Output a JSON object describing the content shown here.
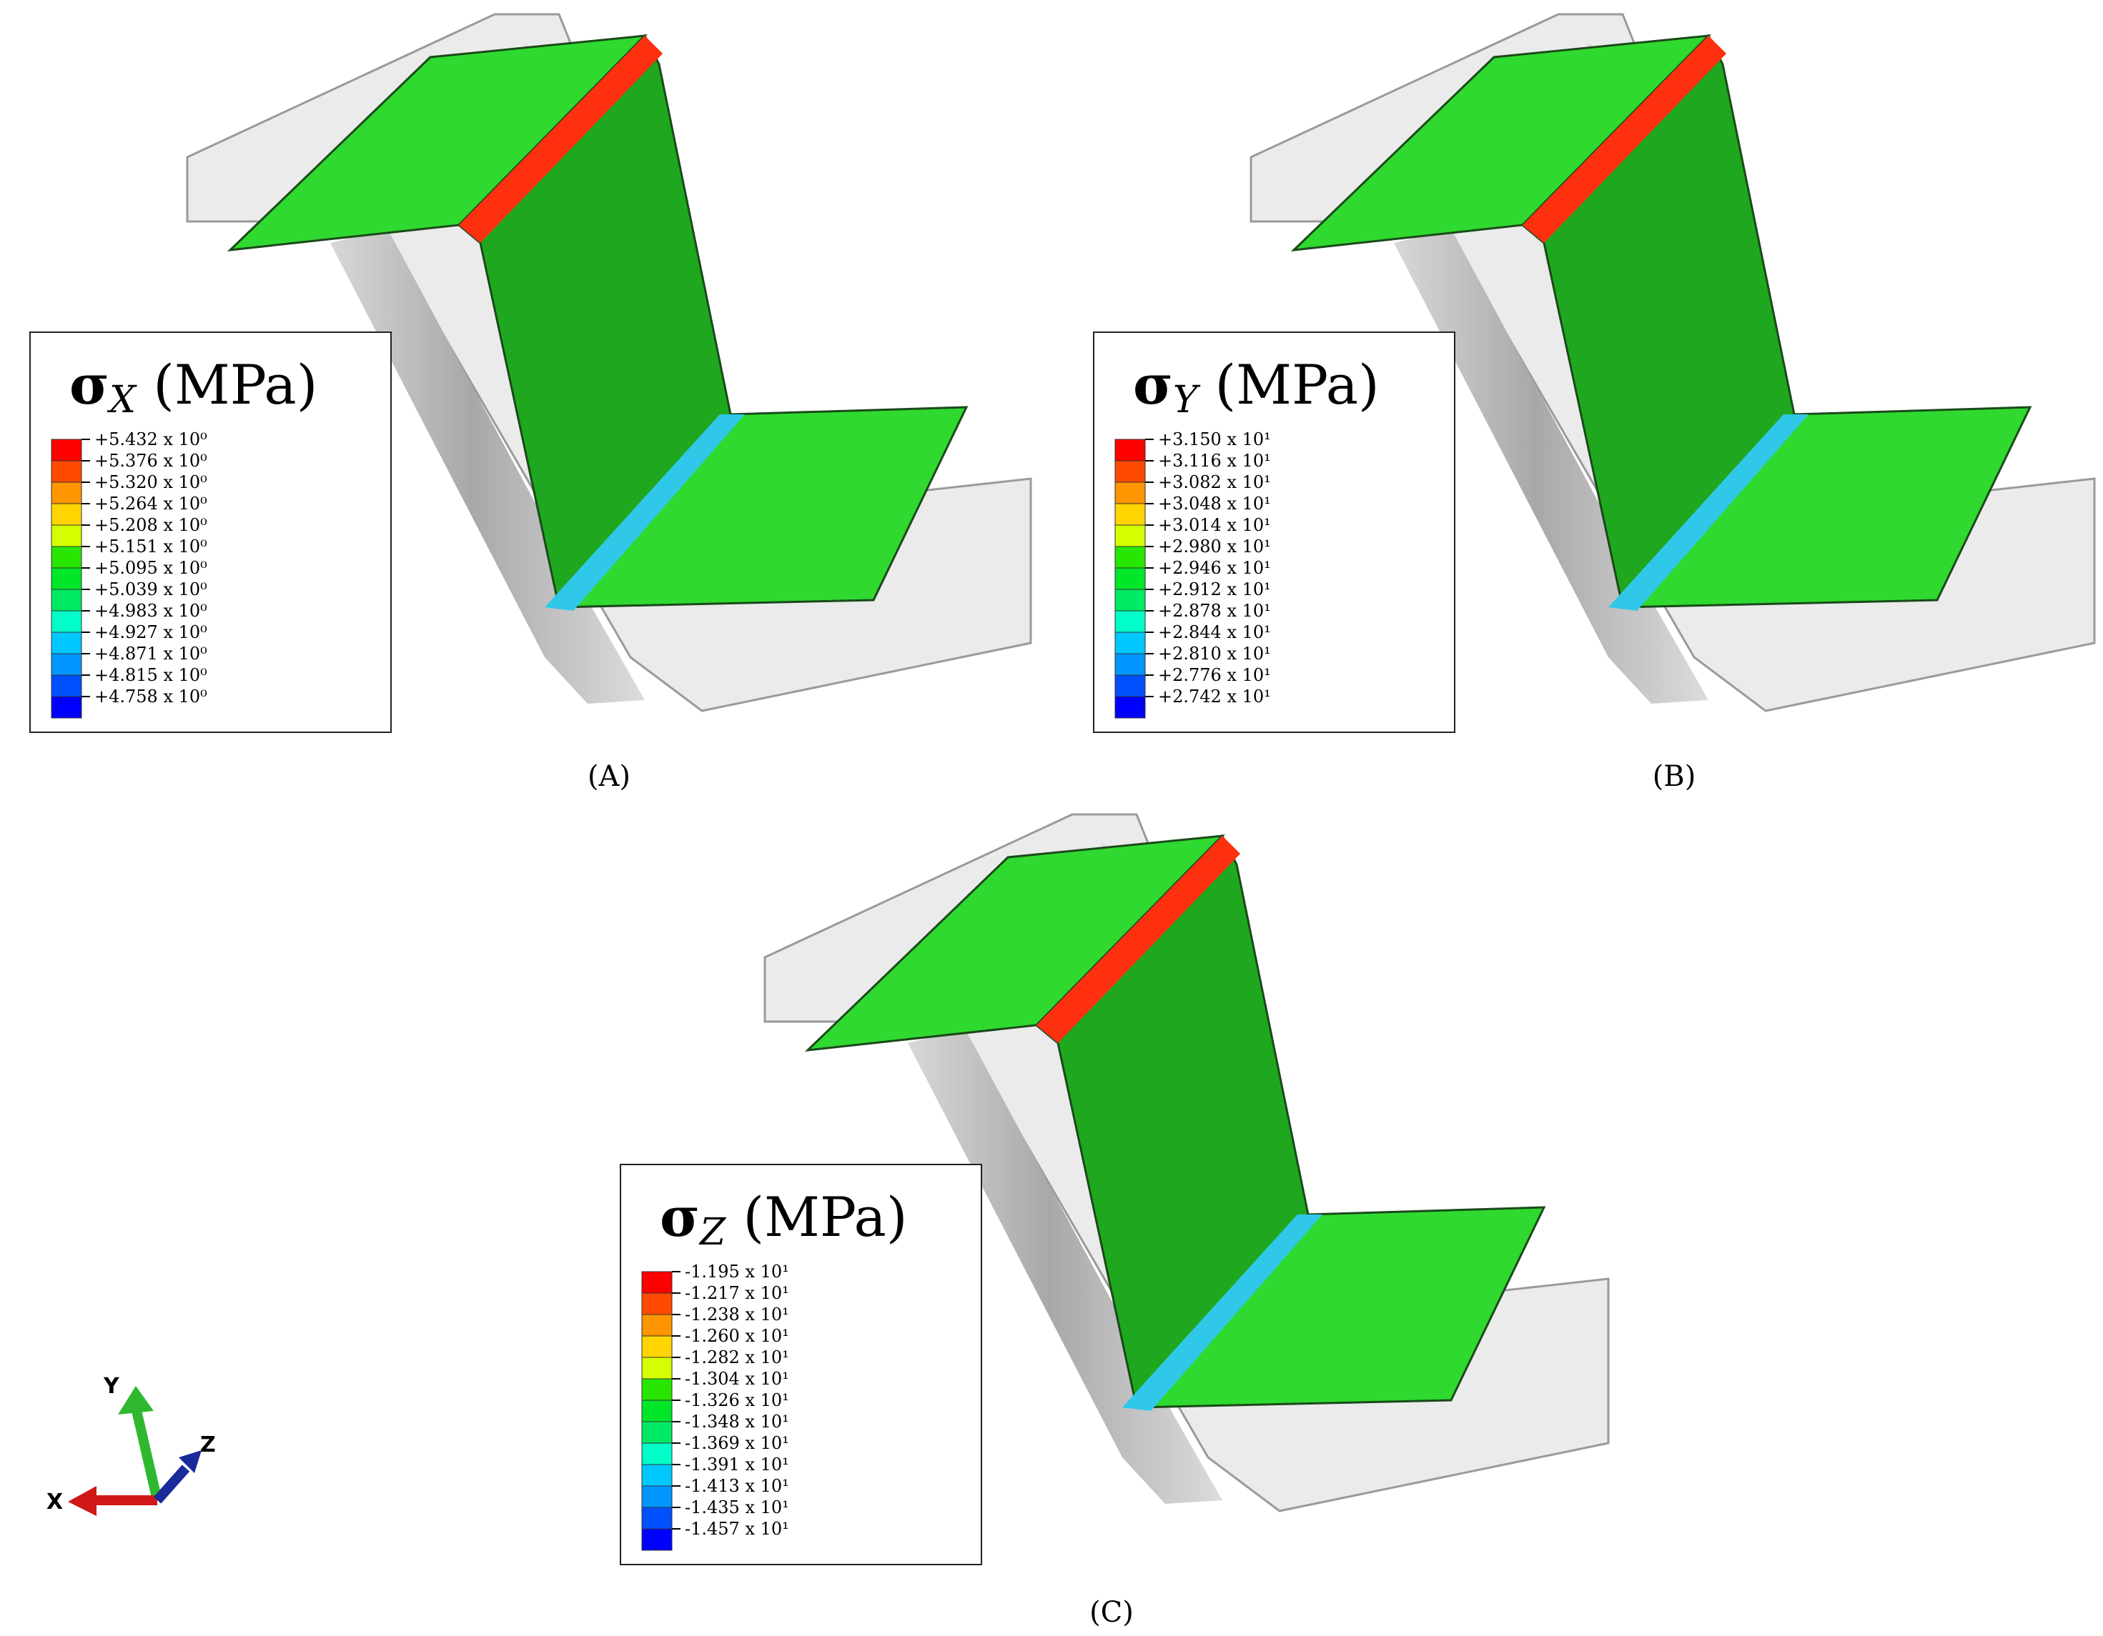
{
  "panels": [
    {
      "id": "A",
      "label": "(A)",
      "legend": {
        "symbol": "σ",
        "subscript": "X",
        "unit": " (MPa)",
        "values": [
          "+5.432 x 10⁰",
          "+5.376 x 10⁰",
          "+5.320 x 10⁰",
          "+5.264 x 10⁰",
          "+5.208 x 10⁰",
          "+5.151 x 10⁰",
          "+5.095 x 10⁰",
          "+5.039 x 10⁰",
          "+4.983 x 10⁰",
          "+4.927 x 10⁰",
          "+4.871 x 10⁰",
          "+4.815 x 10⁰",
          "+4.758 x 10⁰"
        ]
      },
      "top_bend_band": "red-yellow",
      "bottom_bend_band": "cyan"
    },
    {
      "id": "B",
      "label": "(B)",
      "legend": {
        "symbol": "σ",
        "subscript": "Y",
        "unit": " (MPa)",
        "values": [
          "+3.150 x 10¹",
          "+3.116 x 10¹",
          "+3.082 x 10¹",
          "+3.048 x 10¹",
          "+3.014 x 10¹",
          "+2.980 x 10¹",
          "+2.946 x 10¹",
          "+2.912 x 10¹",
          "+2.878 x 10¹",
          "+2.844 x 10¹",
          "+2.810 x 10¹",
          "+2.776 x 10¹",
          "+2.742 x 10¹"
        ]
      },
      "top_bend_band": "red",
      "bottom_bend_band": "blue"
    },
    {
      "id": "C",
      "label": "(C)",
      "legend": {
        "symbol": "σ",
        "subscript": "Z",
        "unit": " (MPa)",
        "values": [
          "-1.195 x 10¹",
          "-1.217 x 10¹",
          "-1.238 x 10¹",
          "-1.260 x 10¹",
          "-1.282 x 10¹",
          "-1.304 x 10¹",
          "-1.326 x 10¹",
          "-1.348 x 10¹",
          "-1.369 x 10¹",
          "-1.391 x 10¹",
          "-1.413 x 10¹",
          "-1.435 x 10¹",
          "-1.457 x 10¹"
        ]
      },
      "top_bend_band": "blue",
      "bottom_bend_band": "orange"
    }
  ],
  "colorbar": [
    "#ff0000",
    "#ff4a00",
    "#ff9500",
    "#ffd400",
    "#d4ff00",
    "#28e600",
    "#00e628",
    "#00ea64",
    "#00ffc8",
    "#00c8ff",
    "#0096ff",
    "#0050ff",
    "#0000ff"
  ],
  "triad": {
    "x": "X",
    "y": "Y",
    "z": "Z"
  },
  "colors": {
    "die": "#b0b0b0",
    "die_light": "#e6e6e6",
    "flange": "#2fd92f",
    "wall": "#1fa81f",
    "edge": "#1a4a1a"
  }
}
